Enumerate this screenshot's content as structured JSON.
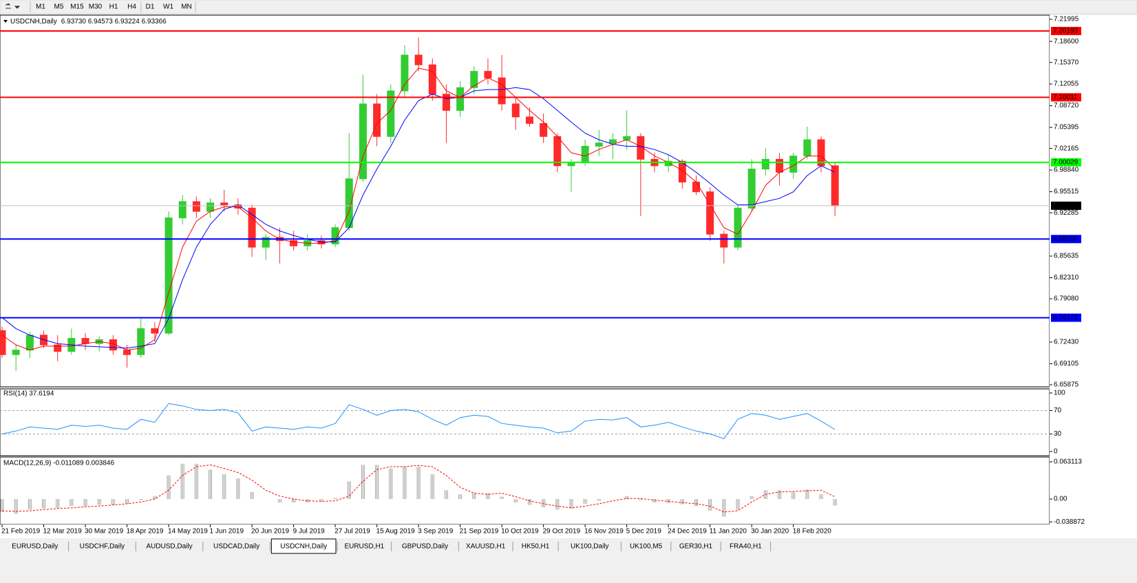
{
  "toolbar": {
    "timeframes": [
      "M1",
      "M5",
      "M15",
      "M30",
      "H1",
      "H4",
      "D1",
      "W1",
      "MN"
    ]
  },
  "chart_data": [
    {
      "type": "candlestick",
      "title": "USDCNH,Daily",
      "subtitle": "6.93730 6.94573 6.93224 6.93366",
      "categories": [
        "21 Feb 2019",
        null,
        null,
        "12 Mar 2019",
        null,
        null,
        "30 Mar 2019",
        null,
        null,
        "18 Apr 2019",
        null,
        null,
        "14 May 2019",
        null,
        null,
        "1 Jun 2019",
        null,
        null,
        "20 Jun 2019",
        null,
        null,
        "9 Jul 2019",
        null,
        null,
        "27 Jul 2019",
        null,
        null,
        "15 Aug 2019",
        null,
        null,
        "3 Sep 2019",
        null,
        null,
        "21 Sep 2019",
        null,
        null,
        "10 Oct 2019",
        null,
        null,
        "29 Oct 2019",
        null,
        null,
        "16 Nov 2019",
        null,
        null,
        "5 Dec 2019",
        null,
        null,
        "24 Dec 2019",
        null,
        null,
        "11 Jan 2020",
        null,
        null,
        "30 Jan 2020",
        null,
        null,
        "18 Feb 2020",
        null,
        null,
        null
      ],
      "open": [
        6.742,
        6.705,
        6.712,
        6.735,
        6.72,
        6.71,
        6.73,
        6.722,
        6.728,
        6.712,
        6.705,
        6.745,
        6.738,
        6.915,
        6.94,
        6.925,
        6.938,
        6.935,
        6.93,
        6.87,
        6.885,
        6.88,
        6.872,
        6.88,
        6.875,
        6.9,
        6.975,
        7.09,
        7.04,
        7.11,
        7.165,
        7.15,
        7.105,
        7.08,
        7.115,
        7.14,
        7.13,
        7.09,
        7.07,
        7.06,
        7.04,
        6.995,
        7.0,
        7.025,
        7.03,
        7.035,
        7.04,
        7.005,
        6.995,
        7.002,
        6.97,
        6.955,
        6.89,
        6.87,
        6.93,
        6.99,
        7.005,
        6.985,
        7.01,
        7.035,
        6.995
      ],
      "high": [
        6.748,
        6.72,
        6.74,
        6.742,
        6.735,
        6.745,
        6.738,
        6.733,
        6.735,
        6.72,
        6.76,
        6.755,
        6.925,
        6.95,
        6.948,
        6.945,
        6.958,
        6.945,
        6.935,
        6.89,
        6.9,
        6.895,
        6.89,
        6.888,
        6.905,
        7.045,
        7.135,
        7.105,
        7.12,
        7.18,
        7.192,
        7.16,
        7.12,
        7.125,
        7.148,
        7.16,
        7.165,
        7.1,
        7.085,
        7.075,
        7.045,
        7.005,
        7.035,
        7.05,
        7.045,
        7.08,
        7.045,
        7.015,
        7.012,
        7.005,
        6.98,
        6.962,
        6.895,
        6.935,
        7.005,
        7.022,
        7.015,
        7.015,
        7.055,
        7.04,
        7.0
      ],
      "low": [
        6.7,
        6.68,
        6.7,
        6.715,
        6.695,
        6.705,
        6.712,
        6.71,
        6.705,
        6.685,
        6.7,
        6.725,
        6.735,
        6.905,
        6.915,
        6.915,
        6.925,
        6.92,
        6.855,
        6.85,
        6.845,
        6.865,
        6.865,
        6.868,
        6.87,
        6.895,
        6.97,
        7.025,
        7.03,
        7.1,
        7.14,
        7.095,
        7.03,
        7.07,
        7.105,
        7.12,
        7.08,
        7.05,
        7.055,
        7.03,
        6.985,
        6.955,
        6.995,
        7.01,
        7.005,
        7.02,
        6.918,
        6.985,
        6.985,
        6.96,
        6.95,
        6.88,
        6.845,
        6.865,
        6.925,
        6.98,
        6.965,
        6.975,
        7.005,
        6.985,
        6.9178
      ],
      "close": [
        6.705,
        6.712,
        6.735,
        6.72,
        6.71,
        6.73,
        6.722,
        6.728,
        6.712,
        6.705,
        6.745,
        6.738,
        6.915,
        6.94,
        6.925,
        6.938,
        6.935,
        6.93,
        6.87,
        6.885,
        6.88,
        6.872,
        6.88,
        6.875,
        6.9,
        6.975,
        7.09,
        7.04,
        7.11,
        7.165,
        7.15,
        7.105,
        7.08,
        7.115,
        7.14,
        7.13,
        7.09,
        7.07,
        7.06,
        7.04,
        6.995,
        7.0,
        7.025,
        7.03,
        7.035,
        7.04,
        7.005,
        6.995,
        7.002,
        6.97,
        6.955,
        6.89,
        6.87,
        6.93,
        6.99,
        7.005,
        6.985,
        7.01,
        7.035,
        6.995,
        6.9337
      ],
      "up_color": "#33cc33",
      "down_color": "#ff2a2a",
      "series": [
        {
          "color": "#ff0000",
          "values": [
            6.735,
            6.72,
            6.712,
            6.718,
            6.718,
            6.718,
            6.722,
            6.725,
            6.722,
            6.712,
            6.715,
            6.728,
            6.8,
            6.87,
            6.91,
            6.925,
            6.932,
            6.932,
            6.915,
            6.895,
            6.882,
            6.878,
            6.876,
            6.876,
            6.88,
            6.925,
            7.01,
            7.06,
            7.08,
            7.12,
            7.145,
            7.14,
            7.11,
            7.1,
            7.118,
            7.13,
            7.12,
            7.1,
            7.08,
            7.062,
            7.04,
            7.015,
            7.01,
            7.02,
            7.028,
            7.035,
            7.025,
            7.01,
            7.0,
            6.988,
            6.97,
            6.935,
            6.9,
            6.89,
            6.925,
            6.965,
            6.985,
            6.995,
            7.01,
            7.01,
            6.99
          ]
        },
        {
          "color": "#0000ff",
          "values": [
            6.762,
            6.745,
            6.735,
            6.728,
            6.722,
            6.72,
            6.718,
            6.717,
            6.716,
            6.715,
            6.718,
            6.722,
            6.76,
            6.82,
            6.87,
            6.905,
            6.928,
            6.935,
            6.92,
            6.905,
            6.895,
            6.888,
            6.882,
            6.878,
            6.878,
            6.9,
            6.95,
            6.99,
            7.025,
            7.065,
            7.095,
            7.105,
            7.098,
            7.1,
            7.11,
            7.112,
            7.112,
            7.115,
            7.112,
            7.098,
            7.08,
            7.062,
            7.045,
            7.035,
            7.028,
            7.025,
            7.025,
            7.02,
            7.012,
            7.0,
            6.985,
            6.968,
            6.95,
            6.935,
            6.935,
            6.94,
            6.945,
            6.955,
            6.98,
            6.995,
            6.985
          ]
        }
      ],
      "levels": [
        {
          "value": 7.20193,
          "color": "#ff0000"
        },
        {
          "value": 7.10011,
          "color": "#ff0000"
        },
        {
          "value": 7.00029,
          "color": "#00ff00"
        },
        {
          "value": 6.8825,
          "label": "6.88250",
          "color": "#0000ff"
        },
        {
          "value": 6.76171,
          "color": "#0000ff"
        }
      ],
      "last_price": {
        "value": 6.93366,
        "color": "#c0c0c0"
      },
      "ylim": [
        6.65558,
        7.22629
      ],
      "yticks": [
        7.21995,
        {
          "value": 7.186,
          "label": "7.18600"
        },
        {
          "value": 7.1537,
          "label": "7.15370"
        },
        7.12055,
        {
          "value": 7.0872,
          "label": "7.08720"
        },
        7.05395,
        7.02165,
        {
          "value": 6.9884,
          "label": "6.98840"
        },
        6.95515,
        6.92285,
        6.85635,
        {
          "value": 6.8231,
          "label": "6.82310"
        },
        {
          "value": 6.7908,
          "label": "6.79080"
        },
        {
          "value": 6.7243,
          "label": "6.72430"
        },
        6.69105,
        6.65875
      ]
    },
    {
      "type": "line",
      "title": "RSI(14) 37.6194",
      "color": "#1e90ff",
      "values": [
        30,
        35,
        42,
        40,
        38,
        45,
        43,
        45,
        40,
        38,
        55,
        50,
        82,
        78,
        72,
        70,
        72,
        66,
        35,
        42,
        40,
        38,
        42,
        40,
        48,
        80,
        72,
        62,
        70,
        72,
        68,
        55,
        45,
        58,
        62,
        60,
        48,
        45,
        42,
        40,
        32,
        35,
        52,
        55,
        54,
        58,
        42,
        45,
        50,
        42,
        35,
        30,
        22,
        55,
        65,
        62,
        55,
        60,
        65,
        52,
        37.6194
      ],
      "levels": [
        30,
        70
      ],
      "ylim": [
        -7,
        107
      ],
      "yticks": [
        100,
        70,
        30,
        0
      ]
    },
    {
      "type": "bar",
      "title": "MACD(12,26,9) -0.011089 0.003846",
      "color": "#a0a0a0",
      "values": [
        -0.022,
        -0.025,
        -0.018,
        -0.016,
        -0.015,
        -0.012,
        -0.012,
        -0.01,
        -0.01,
        -0.008,
        -0.002,
        0.005,
        0.04,
        0.06,
        0.06,
        0.05,
        0.042,
        0.035,
        0.012,
        0.0,
        -0.006,
        -0.006,
        -0.006,
        -0.004,
        0.002,
        0.03,
        0.058,
        0.058,
        0.052,
        0.055,
        0.055,
        0.042,
        0.015,
        0.008,
        0.01,
        0.01,
        0.004,
        -0.006,
        -0.01,
        -0.014,
        -0.018,
        -0.016,
        -0.008,
        -0.003,
        0.0,
        0.005,
        -0.002,
        -0.006,
        -0.007,
        -0.009,
        -0.012,
        -0.02,
        -0.03,
        -0.018,
        0.005,
        0.015,
        0.015,
        0.012,
        0.016,
        0.008,
        -0.011089
      ],
      "series": [
        {
          "color": "#ff0000",
          "style": "dashed",
          "values": [
            -0.02,
            -0.021,
            -0.02,
            -0.018,
            -0.016,
            -0.015,
            -0.013,
            -0.012,
            -0.01,
            -0.008,
            -0.005,
            0.0,
            0.015,
            0.04,
            0.055,
            0.058,
            0.052,
            0.045,
            0.032,
            0.015,
            0.005,
            0.0,
            -0.003,
            -0.004,
            -0.003,
            0.005,
            0.03,
            0.05,
            0.055,
            0.055,
            0.057,
            0.055,
            0.04,
            0.02,
            0.01,
            0.008,
            0.01,
            0.004,
            -0.003,
            -0.008,
            -0.012,
            -0.015,
            -0.012,
            -0.008,
            -0.003,
            0.001,
            0.001,
            -0.002,
            -0.004,
            -0.006,
            -0.008,
            -0.012,
            -0.022,
            -0.02,
            -0.005,
            0.008,
            0.012,
            0.013,
            0.014,
            0.015,
            0.003846
          ]
        }
      ],
      "ylim": [
        -0.0432,
        0.0713
      ],
      "yticks": [
        0.063113,
        {
          "value": 0,
          "label": "0.00"
        },
        -0.038872
      ]
    }
  ],
  "tabs": {
    "items": [
      "EURUSD,Daily",
      "USDCHF,Daily",
      "AUDUSD,Daily",
      "USDCAD,Daily",
      "USDCNH,Daily",
      "EURUSD,H1",
      "GBPUSD,Daily",
      "XAUUSD,H1",
      "HK50,H1",
      "UK100,Daily",
      "UK100,M5",
      "GER30,H1",
      "FRA40,H1"
    ],
    "active": 4
  }
}
